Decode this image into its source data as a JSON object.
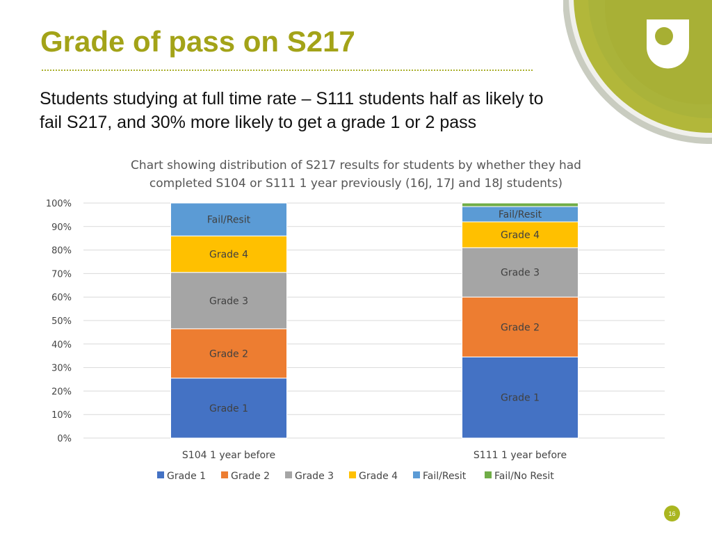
{
  "slide": {
    "title": "Grade of pass on S217",
    "subtitle": "Students studying at full time rate – S111 students half as likely to fail S217, and 30% more likely to get a grade 1 or 2 pass",
    "page_number": "16",
    "logo_icon": "open-university-logo-icon"
  },
  "colors": {
    "title": "#a3a318",
    "grade1": "#4472c4",
    "grade2": "#ed7d31",
    "grade3": "#a5a5a5",
    "grade4": "#ffc000",
    "fail_resit": "#5b9bd5",
    "fail_no_resit": "#70ad47"
  },
  "chart_data": {
    "type": "bar",
    "stacked": true,
    "title": "Chart showing distribution of S217 results for students by whether they had completed S104 or S111 1 year previously (16J, 17J and 18J students)",
    "title_lines": [
      "Chart showing distribution of S217 results for students by whether they had",
      "completed S104 or S111 1 year previously (16J, 17J and 18J students)"
    ],
    "categories": [
      "S104 1 year before",
      "S111 1 year before"
    ],
    "series": [
      {
        "name": "Grade 1",
        "values": [
          25.5,
          34.5
        ]
      },
      {
        "name": "Grade 2",
        "values": [
          21,
          25.5
        ]
      },
      {
        "name": "Grade 3",
        "values": [
          24,
          21
        ]
      },
      {
        "name": "Grade 4",
        "values": [
          15.5,
          11
        ]
      },
      {
        "name": "Fail/Resit",
        "values": [
          14,
          6.5
        ]
      },
      {
        "name": "Fail/No Resit",
        "values": [
          0,
          1.5
        ]
      }
    ],
    "segment_labels": [
      [
        "Grade 1",
        "Grade 2",
        "Grade 3",
        "Grade 4",
        "Fail/Resit",
        null
      ],
      [
        "Grade 1",
        "Grade 2",
        "Grade 3",
        "Grade 4",
        "Fail/Resit",
        null
      ]
    ],
    "ylim": [
      0,
      100
    ],
    "yticks": [
      "0%",
      "10%",
      "20%",
      "30%",
      "40%",
      "50%",
      "60%",
      "70%",
      "80%",
      "90%",
      "100%"
    ],
    "grid": true,
    "legend": [
      "Grade 1",
      "Grade 2",
      "Grade 3",
      "Grade 4",
      "Fail/Resit",
      "Fail/No Resit"
    ],
    "legend_position": "bottom"
  }
}
